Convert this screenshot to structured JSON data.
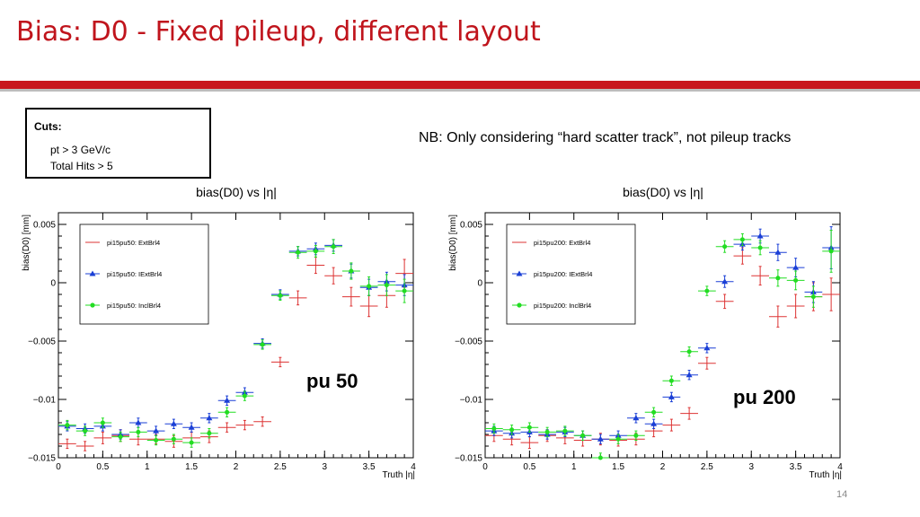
{
  "slide": {
    "title": "Bias: D0 - Fixed pileup, different layout",
    "cuts_title": "Cuts:",
    "cuts": [
      "pt > 3 GeV/c",
      "Total Hits > 5"
    ],
    "note": "NB: Only considering “hard scatter track”, not pileup tracks",
    "page_number": "14",
    "colors": {
      "title": "#c0141c",
      "rule": "#c8161d"
    }
  },
  "chart_data": [
    {
      "type": "scatter",
      "title": "bias(D0) vs |η|",
      "xlabel": "Truth |η|",
      "ylabel": "bias(D0) [mm]",
      "xlim": [
        0,
        4
      ],
      "ylim": [
        -0.015,
        0.006
      ],
      "xticks": [
        0,
        0.5,
        1,
        1.5,
        2,
        2.5,
        3,
        3.5,
        4
      ],
      "xtick_labels": [
        "0",
        "0.5",
        "1",
        "1.5",
        "2",
        "2.5",
        "3",
        "3.5",
        "4"
      ],
      "yticks": [
        -0.015,
        -0.01,
        -0.005,
        0,
        0.005
      ],
      "ytick_labels": [
        "−0.015",
        "−0.01",
        "−0.005",
        "0",
        "0.005"
      ],
      "annotation": "pu 50",
      "grid": false,
      "legend_position": "top-left",
      "series": [
        {
          "name": "pi15pu50: ExtBrl4",
          "color": "#dd3333",
          "marker": "none",
          "x": [
            0.1,
            0.3,
            0.5,
            0.7,
            0.9,
            1.1,
            1.3,
            1.5,
            1.7,
            1.9,
            2.1,
            2.3,
            2.5,
            2.7,
            2.9,
            3.1,
            3.3,
            3.5,
            3.7,
            3.9
          ],
          "y": [
            -0.0138,
            -0.014,
            -0.0133,
            -0.0131,
            -0.0134,
            -0.0134,
            -0.0136,
            -0.0133,
            -0.0132,
            -0.0124,
            -0.0122,
            -0.0119,
            -0.0068,
            -0.0013,
            0.0015,
            0.0006,
            -0.0012,
            -0.002,
            -0.0011,
            0.0008
          ],
          "yerr": [
            0.0004,
            0.0004,
            0.0005,
            0.0005,
            0.0005,
            0.0004,
            0.0005,
            0.0005,
            0.0005,
            0.0004,
            0.0004,
            0.0004,
            0.0004,
            0.0006,
            0.0007,
            0.0007,
            0.0008,
            0.0009,
            0.001,
            0.0012
          ]
        },
        {
          "name": "pi15pu50: IExtBrl4",
          "color": "#1a3fd6",
          "marker": "triangle",
          "x": [
            0.1,
            0.3,
            0.5,
            0.7,
            0.9,
            1.1,
            1.3,
            1.5,
            1.7,
            1.9,
            2.1,
            2.3,
            2.5,
            2.7,
            2.9,
            3.1,
            3.3,
            3.5,
            3.7,
            3.9
          ],
          "y": [
            -0.0123,
            -0.0125,
            -0.0123,
            -0.013,
            -0.012,
            -0.0127,
            -0.0121,
            -0.0124,
            -0.0116,
            -0.0101,
            -0.0094,
            -0.0052,
            -0.001,
            0.0027,
            0.0029,
            0.0032,
            0.001,
            -0.0004,
            0.0001,
            -0.0002
          ],
          "yerr": [
            0.0004,
            0.0004,
            0.0004,
            0.0004,
            0.0004,
            0.0004,
            0.0004,
            0.0004,
            0.0004,
            0.0004,
            0.0004,
            0.0004,
            0.0004,
            0.0004,
            0.0005,
            0.0005,
            0.0006,
            0.0007,
            0.0008,
            0.0009
          ]
        },
        {
          "name": "pi15pu50: InclBrl4",
          "color": "#22dd22",
          "marker": "circle",
          "x": [
            0.1,
            0.3,
            0.5,
            0.7,
            0.9,
            1.1,
            1.3,
            1.5,
            1.7,
            1.9,
            2.1,
            2.3,
            2.5,
            2.7,
            2.9,
            3.1,
            3.3,
            3.5,
            3.7,
            3.9
          ],
          "y": [
            -0.0122,
            -0.0127,
            -0.012,
            -0.0132,
            -0.0128,
            -0.0135,
            -0.0134,
            -0.0137,
            -0.0129,
            -0.0111,
            -0.0097,
            -0.0053,
            -0.0011,
            0.0026,
            0.0027,
            0.0031,
            0.001,
            -0.0003,
            -0.0002,
            -0.0007
          ],
          "yerr": [
            0.0004,
            0.0004,
            0.0004,
            0.0004,
            0.0004,
            0.0004,
            0.0004,
            0.0004,
            0.0004,
            0.0004,
            0.0004,
            0.0004,
            0.0004,
            0.0005,
            0.0005,
            0.0006,
            0.0007,
            0.0008,
            0.0009,
            0.001
          ]
        }
      ]
    },
    {
      "type": "scatter",
      "title": "bias(D0) vs |η|",
      "xlabel": "Truth |η|",
      "ylabel": "bias(D0) [mm]",
      "xlim": [
        0,
        4
      ],
      "ylim": [
        -0.015,
        0.006
      ],
      "xticks": [
        0,
        0.5,
        1,
        1.5,
        2,
        2.5,
        3,
        3.5,
        4
      ],
      "xtick_labels": [
        "0",
        "0.5",
        "1",
        "1.5",
        "2",
        "2.5",
        "3",
        "3.5",
        "4"
      ],
      "yticks": [
        -0.015,
        -0.01,
        -0.005,
        0,
        0.005
      ],
      "ytick_labels": [
        "−0.015",
        "−0.01",
        "−0.005",
        "0",
        "0.005"
      ],
      "annotation": "pu 200",
      "grid": false,
      "legend_position": "top-left",
      "series": [
        {
          "name": "pi15pu200: ExtBrl4",
          "color": "#dd3333",
          "marker": "none",
          "x": [
            0.1,
            0.3,
            0.5,
            0.7,
            0.9,
            1.1,
            1.3,
            1.5,
            1.7,
            1.9,
            2.1,
            2.3,
            2.5,
            2.7,
            2.9,
            3.1,
            3.3,
            3.5,
            3.7,
            3.9
          ],
          "y": [
            -0.0131,
            -0.0134,
            -0.0137,
            -0.0131,
            -0.0133,
            -0.0135,
            -0.0134,
            -0.0135,
            -0.0134,
            -0.0127,
            -0.0122,
            -0.0112,
            -0.0069,
            -0.0016,
            0.0023,
            0.0006,
            -0.0029,
            -0.002,
            -0.0012,
            -0.001
          ],
          "yerr": [
            0.0005,
            0.0005,
            0.0005,
            0.0005,
            0.0005,
            0.0005,
            0.0005,
            0.0005,
            0.0005,
            0.0005,
            0.0005,
            0.0005,
            0.0005,
            0.0006,
            0.0007,
            0.0008,
            0.0009,
            0.001,
            0.0012,
            0.0014
          ]
        },
        {
          "name": "pi15pu200: IExtBrl4",
          "color": "#1a3fd6",
          "marker": "triangle",
          "x": [
            0.1,
            0.3,
            0.5,
            0.7,
            0.9,
            1.1,
            1.3,
            1.5,
            1.7,
            1.9,
            2.1,
            2.3,
            2.5,
            2.7,
            2.9,
            3.1,
            3.3,
            3.5,
            3.7,
            3.9
          ],
          "y": [
            -0.0127,
            -0.0129,
            -0.0128,
            -0.013,
            -0.0128,
            -0.0131,
            -0.0134,
            -0.0131,
            -0.0116,
            -0.0121,
            -0.0098,
            -0.0079,
            -0.0056,
            0.0001,
            0.0033,
            0.004,
            0.0026,
            0.0013,
            -0.0008,
            0.003
          ],
          "yerr": [
            0.0004,
            0.0004,
            0.0004,
            0.0004,
            0.0004,
            0.0004,
            0.0004,
            0.0004,
            0.0004,
            0.0004,
            0.0004,
            0.0004,
            0.0004,
            0.0005,
            0.0005,
            0.0006,
            0.0007,
            0.0008,
            0.0009,
            0.0018
          ]
        },
        {
          "name": "pi15pu200: InclBrl4",
          "color": "#22dd22",
          "marker": "circle",
          "x": [
            0.1,
            0.3,
            0.5,
            0.7,
            0.9,
            1.1,
            1.3,
            1.5,
            1.7,
            1.9,
            2.1,
            2.3,
            2.5,
            2.7,
            2.9,
            3.1,
            3.3,
            3.5,
            3.7,
            3.9
          ],
          "y": [
            -0.0125,
            -0.0126,
            -0.0124,
            -0.0128,
            -0.0127,
            -0.0131,
            -0.015,
            -0.0134,
            -0.0131,
            -0.0111,
            -0.0084,
            -0.0059,
            -0.0007,
            0.0031,
            0.0037,
            0.003,
            0.0004,
            0.0002,
            -0.0012,
            0.0027
          ],
          "yerr": [
            0.0004,
            0.0004,
            0.0004,
            0.0004,
            0.0004,
            0.0004,
            0.0004,
            0.0004,
            0.0004,
            0.0004,
            0.0004,
            0.0004,
            0.0004,
            0.0005,
            0.0005,
            0.0006,
            0.0007,
            0.0008,
            0.0009,
            0.0018
          ]
        }
      ]
    }
  ]
}
